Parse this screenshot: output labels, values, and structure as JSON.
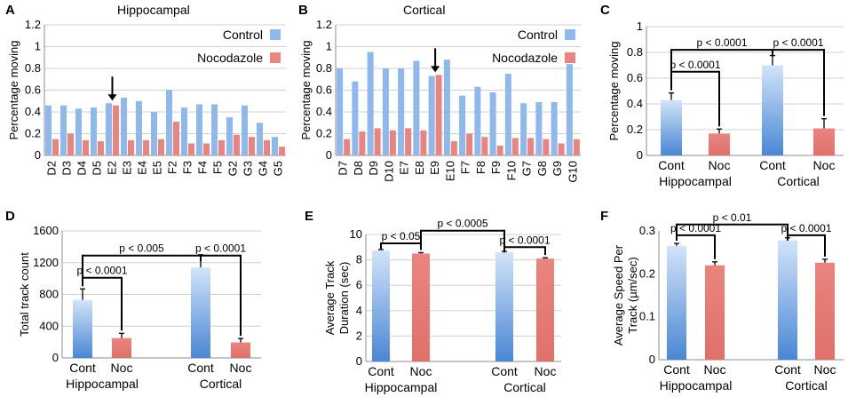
{
  "colors": {
    "control": "#8fb8ec",
    "control_dark": "#4a86d4",
    "nocodazole": "#e9857f",
    "nocodazole_dark": "#e0706a",
    "arrow": "#000000"
  },
  "chart_data": [
    {
      "panel": "A",
      "type": "bar",
      "title": "Hippocampal",
      "ylabel": "Percentage moving",
      "ylim": [
        0,
        1.2
      ],
      "yticks": [
        "0",
        "0.2",
        "0.4",
        "0.6",
        "0.8",
        "1",
        "1.2"
      ],
      "categories": [
        "D2",
        "D3",
        "D4",
        "D5",
        "E2",
        "E3",
        "E4",
        "E5",
        "F2",
        "F3",
        "F4",
        "F5",
        "G2",
        "G3",
        "G4",
        "G5"
      ],
      "series": [
        {
          "name": "Control",
          "values": [
            0.46,
            0.46,
            0.43,
            0.44,
            0.48,
            0.53,
            0.5,
            0.4,
            0.6,
            0.44,
            0.47,
            0.47,
            0.35,
            0.46,
            0.3,
            0.17
          ]
        },
        {
          "name": "Nocodazole",
          "values": [
            0.15,
            0.2,
            0.14,
            0.13,
            0.46,
            0.14,
            0.14,
            0.15,
            0.31,
            0.11,
            0.11,
            0.14,
            0.19,
            0.17,
            0.14,
            0.08
          ]
        }
      ],
      "legend": [
        "Control",
        "Nocodazole"
      ],
      "arrow_category": "E2"
    },
    {
      "panel": "B",
      "type": "bar",
      "title": "Cortical",
      "ylabel": "Percentage moving",
      "ylim": [
        0,
        1.2
      ],
      "yticks": [
        "0",
        "0.2",
        "0.4",
        "0.6",
        "0.8",
        "1",
        "1.2"
      ],
      "categories": [
        "D7",
        "D8",
        "D9",
        "D10",
        "E7",
        "E8",
        "E9",
        "E10",
        "F7",
        "F8",
        "F9",
        "F10",
        "G7",
        "G8",
        "G9",
        "G10"
      ],
      "series": [
        {
          "name": "Control",
          "values": [
            0.8,
            0.68,
            0.95,
            0.8,
            0.8,
            0.87,
            0.73,
            0.88,
            0.55,
            0.63,
            0.58,
            0.75,
            0.48,
            0.49,
            0.49,
            0.84
          ]
        },
        {
          "name": "Nocodazole",
          "values": [
            0.15,
            0.22,
            0.25,
            0.23,
            0.25,
            0.23,
            0.74,
            0.13,
            0.2,
            0.17,
            0.09,
            0.16,
            0.16,
            0.15,
            0.11,
            0.15
          ]
        }
      ],
      "legend": [
        "Control",
        "Nocodazole"
      ],
      "arrow_category": "E9"
    },
    {
      "panel": "C",
      "type": "bar",
      "ylabel": "Percentage moving",
      "ylim": [
        0,
        1
      ],
      "yticks": [
        "0",
        "0.2",
        "0.4",
        "0.6",
        "0.8",
        "1"
      ],
      "categories": [
        "Cont",
        "Noc",
        "Cont",
        "Noc"
      ],
      "groups": [
        "Hippocampal",
        "Cortical"
      ],
      "values": [
        0.43,
        0.17,
        0.7,
        0.21
      ],
      "errors": [
        0.055,
        0.035,
        0.075,
        0.075
      ],
      "significance": [
        {
          "from": 0,
          "to": 1,
          "label": "p < 0.0001",
          "level": 0.65
        },
        {
          "from": 0,
          "to": 2,
          "label": "p < 0.0001",
          "level": 0.82
        },
        {
          "from": 2,
          "to": 3,
          "label": "p < 0.0001",
          "level": 0.82
        }
      ]
    },
    {
      "panel": "D",
      "type": "bar",
      "ylabel": "Total track count",
      "ylim": [
        0,
        1600
      ],
      "yticks": [
        "0",
        "400",
        "800",
        "1200",
        "1600"
      ],
      "categories": [
        "Cont",
        "Noc",
        "Cont",
        "Noc"
      ],
      "groups": [
        "Hippocampal",
        "Cortical"
      ],
      "values": [
        730,
        250,
        1140,
        195
      ],
      "errors": [
        140,
        60,
        160,
        50
      ],
      "significance": [
        {
          "from": 0,
          "to": 1,
          "label": "p < 0.0001",
          "level": 1010
        },
        {
          "from": 0,
          "to": 2,
          "label": "p < 0.005",
          "level": 1290
        },
        {
          "from": 2,
          "to": 3,
          "label": "p < 0.0001",
          "level": 1290
        }
      ]
    },
    {
      "panel": "E",
      "type": "bar",
      "ylabel": "Average Track Duration (sec)",
      "ylim": [
        0,
        10
      ],
      "yticks": [
        "0",
        "2",
        "4",
        "6",
        "8",
        "10"
      ],
      "categories": [
        "Cont",
        "Noc",
        "Cont",
        "Noc"
      ],
      "groups": [
        "Hippocampal",
        "Cortical"
      ],
      "values": [
        8.75,
        8.5,
        8.6,
        8.1
      ],
      "errors": [
        0.07,
        0.07,
        0.07,
        0.07
      ],
      "significance": [
        {
          "from": 0,
          "to": 1,
          "label": "p < 0.05",
          "level": 9.3
        },
        {
          "from": 1,
          "to": 2,
          "label": "p < 0.0005",
          "level": 10.3
        },
        {
          "from": 2,
          "to": 3,
          "label": "p < 0.0001",
          "level": 9.0
        }
      ]
    },
    {
      "panel": "F",
      "type": "bar",
      "ylabel": "Average Speed Per Track (µm/sec)",
      "ylim": [
        0,
        0.3
      ],
      "yticks": [
        "0",
        "0.1",
        "0.2",
        "0.3"
      ],
      "categories": [
        "Cont",
        "Noc",
        "Cont",
        "Noc"
      ],
      "groups": [
        "Hippocampal",
        "Cortical"
      ],
      "values": [
        0.265,
        0.22,
        0.278,
        0.226
      ],
      "errors": [
        0.006,
        0.008,
        0.006,
        0.008
      ],
      "significance": [
        {
          "from": 0,
          "to": 1,
          "label": "p < 0.0001",
          "level": 0.29
        },
        {
          "from": 0,
          "to": 2,
          "label": "p < 0.01",
          "level": 0.315
        },
        {
          "from": 2,
          "to": 3,
          "label": "p < 0.0001",
          "level": 0.29
        }
      ]
    }
  ]
}
